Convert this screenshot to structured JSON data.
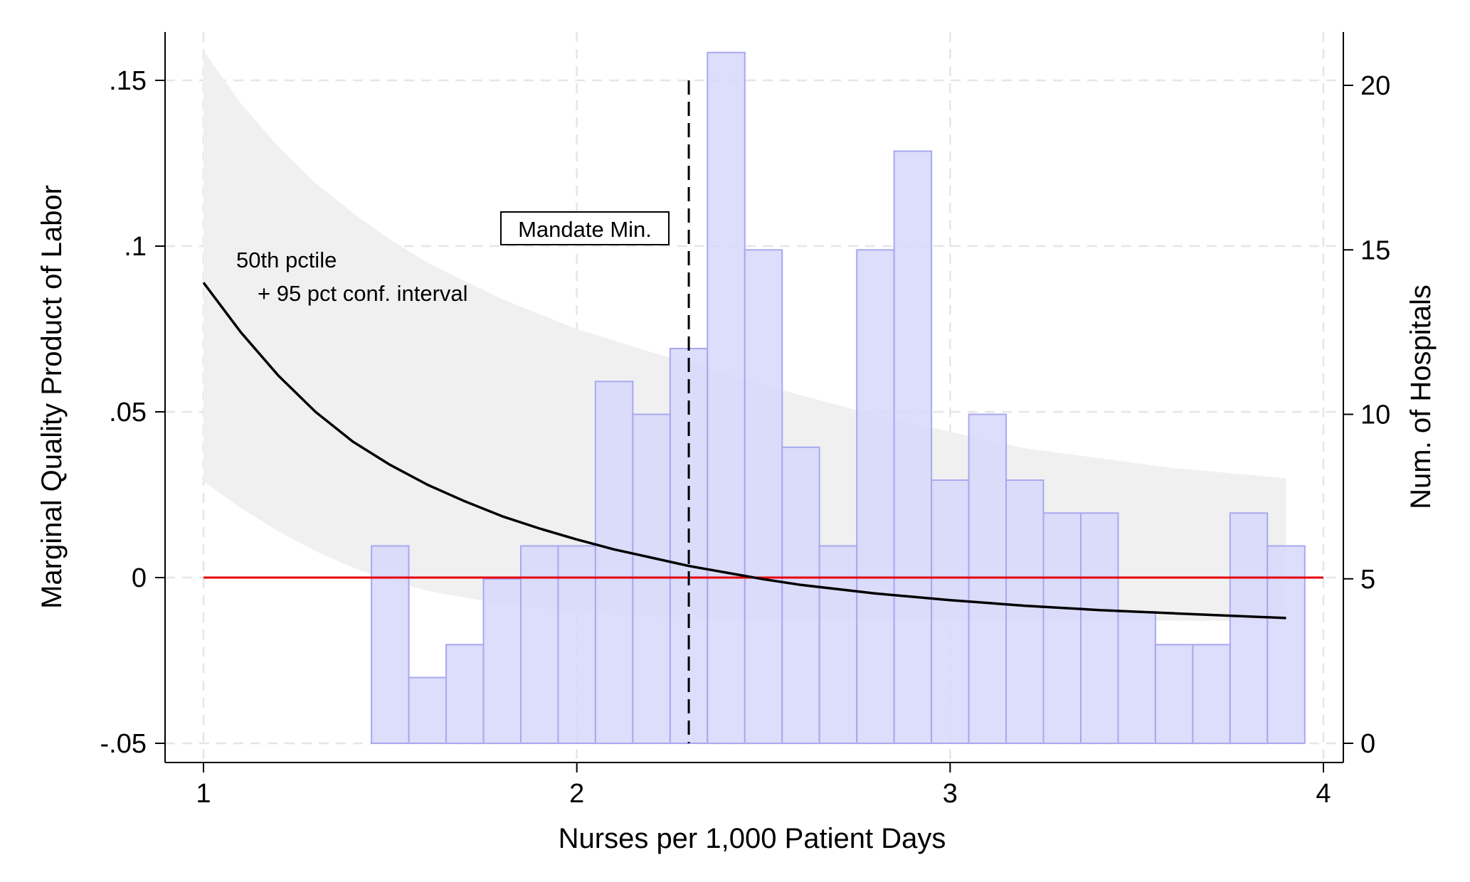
{
  "chart_data": {
    "type": "line+histogram",
    "xlabel": "Nurses per 1,000 Patient Days",
    "ylabel_left": "Marginal Quality Product of Labor",
    "ylabel_right": "Num. of Hospitals",
    "xlim": [
      1,
      4
    ],
    "ylim_left": [
      -0.05,
      0.15
    ],
    "ylim_right": [
      0,
      20
    ],
    "x_ticks": [
      {
        "value": 1,
        "label": "1"
      },
      {
        "value": 2,
        "label": "2"
      },
      {
        "value": 3,
        "label": "3"
      },
      {
        "value": 4,
        "label": "4"
      }
    ],
    "y_ticks_left": [
      {
        "value": -0.05,
        "label": "-.05"
      },
      {
        "value": 0,
        "label": "0"
      },
      {
        "value": 0.05,
        "label": ".05"
      },
      {
        "value": 0.1,
        "label": ".1"
      },
      {
        "value": 0.15,
        "label": ".15"
      }
    ],
    "y_ticks_right": [
      {
        "value": 0,
        "label": "0"
      },
      {
        "value": 5,
        "label": "5"
      },
      {
        "value": 10,
        "label": "10"
      },
      {
        "value": 15,
        "label": "15"
      },
      {
        "value": 20,
        "label": "20"
      }
    ],
    "grid": true,
    "histogram": {
      "color": "#d5d5fb",
      "edge_color": "#a8a8f0",
      "bin_width": 0.1,
      "bins": [
        {
          "x_start": 1.45,
          "count": 6
        },
        {
          "x_start": 1.55,
          "count": 2
        },
        {
          "x_start": 1.65,
          "count": 3
        },
        {
          "x_start": 1.75,
          "count": 5
        },
        {
          "x_start": 1.85,
          "count": 6
        },
        {
          "x_start": 1.95,
          "count": 6
        },
        {
          "x_start": 2.05,
          "count": 11
        },
        {
          "x_start": 2.15,
          "count": 10
        },
        {
          "x_start": 2.25,
          "count": 12
        },
        {
          "x_start": 2.35,
          "count": 21
        },
        {
          "x_start": 2.45,
          "count": 15
        },
        {
          "x_start": 2.55,
          "count": 9
        },
        {
          "x_start": 2.65,
          "count": 6
        },
        {
          "x_start": 2.75,
          "count": 15
        },
        {
          "x_start": 2.85,
          "count": 18
        },
        {
          "x_start": 2.95,
          "count": 8
        },
        {
          "x_start": 3.05,
          "count": 10
        },
        {
          "x_start": 3.15,
          "count": 8
        },
        {
          "x_start": 3.25,
          "count": 7
        },
        {
          "x_start": 3.35,
          "count": 7
        },
        {
          "x_start": 3.45,
          "count": 4
        },
        {
          "x_start": 3.55,
          "count": 3
        },
        {
          "x_start": 3.65,
          "count": 3
        },
        {
          "x_start": 3.75,
          "count": 7
        },
        {
          "x_start": 3.85,
          "count": 6
        }
      ]
    },
    "confidence_band": {
      "color": "#f0f0f0",
      "points": [
        {
          "x": 1.0,
          "lower": 0.029,
          "upper": 0.159
        },
        {
          "x": 1.1,
          "lower": 0.021,
          "upper": 0.143
        },
        {
          "x": 1.2,
          "lower": 0.014,
          "upper": 0.13
        },
        {
          "x": 1.3,
          "lower": 0.008,
          "upper": 0.119
        },
        {
          "x": 1.4,
          "lower": 0.003,
          "upper": 0.11
        },
        {
          "x": 1.5,
          "lower": -0.001,
          "upper": 0.102
        },
        {
          "x": 1.6,
          "lower": -0.004,
          "upper": 0.095
        },
        {
          "x": 1.8,
          "lower": -0.008,
          "upper": 0.084
        },
        {
          "x": 2.0,
          "lower": -0.0105,
          "upper": 0.075
        },
        {
          "x": 2.2,
          "lower": -0.0118,
          "upper": 0.068
        },
        {
          "x": 2.4,
          "lower": -0.0125,
          "upper": 0.0615
        },
        {
          "x": 2.6,
          "lower": -0.0128,
          "upper": 0.055
        },
        {
          "x": 2.8,
          "lower": -0.013,
          "upper": 0.049
        },
        {
          "x": 3.0,
          "lower": -0.013,
          "upper": 0.044
        },
        {
          "x": 3.2,
          "lower": -0.013,
          "upper": 0.039
        },
        {
          "x": 3.4,
          "lower": -0.013,
          "upper": 0.036
        },
        {
          "x": 3.6,
          "lower": -0.013,
          "upper": 0.033
        },
        {
          "x": 3.9,
          "lower": -0.013,
          "upper": 0.03
        }
      ]
    },
    "median_line": {
      "color": "#000000",
      "points": [
        {
          "x": 1.0,
          "y": 0.089
        },
        {
          "x": 1.1,
          "y": 0.074
        },
        {
          "x": 1.2,
          "y": 0.061
        },
        {
          "x": 1.3,
          "y": 0.05
        },
        {
          "x": 1.4,
          "y": 0.041
        },
        {
          "x": 1.5,
          "y": 0.034
        },
        {
          "x": 1.6,
          "y": 0.028
        },
        {
          "x": 1.7,
          "y": 0.023
        },
        {
          "x": 1.8,
          "y": 0.0185
        },
        {
          "x": 1.9,
          "y": 0.0148
        },
        {
          "x": 2.0,
          "y": 0.0115
        },
        {
          "x": 2.1,
          "y": 0.0085
        },
        {
          "x": 2.2,
          "y": 0.006
        },
        {
          "x": 2.3,
          "y": 0.0035
        },
        {
          "x": 2.4,
          "y": 0.0015
        },
        {
          "x": 2.5,
          "y": -0.0005
        },
        {
          "x": 2.6,
          "y": -0.0022
        },
        {
          "x": 2.8,
          "y": -0.0048
        },
        {
          "x": 3.0,
          "y": -0.0068
        },
        {
          "x": 3.2,
          "y": -0.0085
        },
        {
          "x": 3.4,
          "y": -0.0098
        },
        {
          "x": 3.6,
          "y": -0.0108
        },
        {
          "x": 3.9,
          "y": -0.0122
        }
      ]
    },
    "zero_line": {
      "y": 0,
      "color": "#e8000b"
    },
    "mandate_line": {
      "x": 2.3,
      "y_top": 0.15,
      "color": "#000000"
    },
    "annotations": {
      "mandate_label": "Mandate Min.",
      "curve_label_line1": "50th pctile",
      "curve_label_line2": "+ 95 pct conf. interval"
    }
  }
}
